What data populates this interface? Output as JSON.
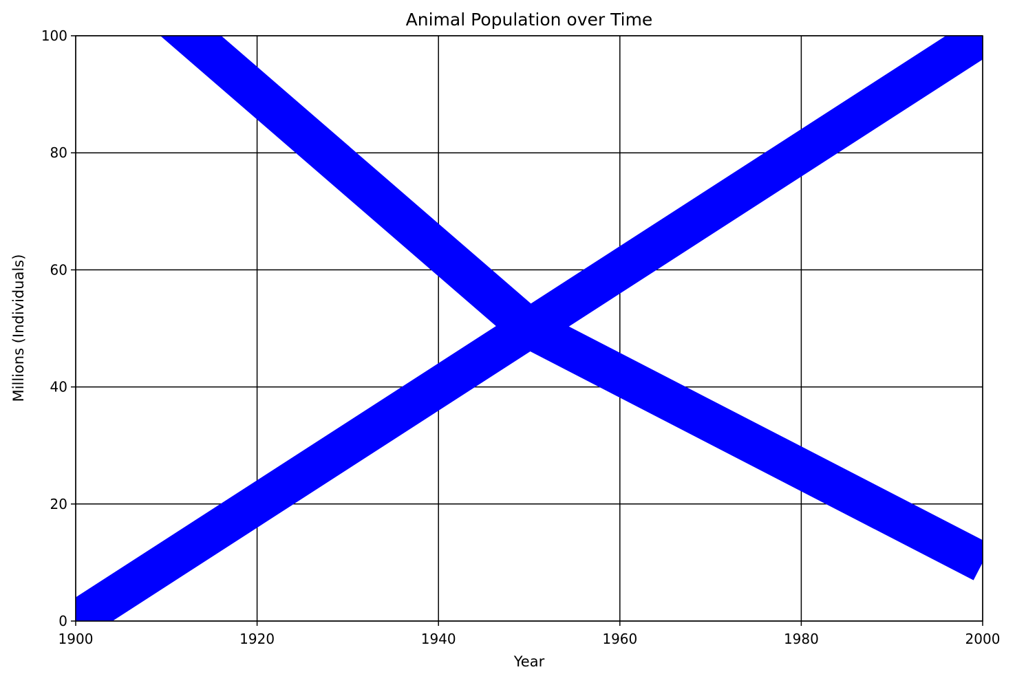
{
  "chart_data": {
    "type": "line",
    "title": "Animal Population over Time",
    "xlabel": "Year",
    "ylabel": "Millions (Individuals)",
    "xlim": [
      1900,
      2000
    ],
    "ylim": [
      0,
      100
    ],
    "xticks": [
      1900,
      1920,
      1940,
      1960,
      1980,
      2000
    ],
    "yticks": [
      0,
      20,
      40,
      60,
      80,
      100
    ],
    "grid": true,
    "legend": "none",
    "series": [
      {
        "color": "#0000ff",
        "x": [
          1900,
          1950,
          2000
        ],
        "y": [
          0,
          50,
          100
        ]
      },
      {
        "color": "#0000ff",
        "x": [
          1900,
          1950,
          2000
        ],
        "y": [
          117,
          50,
          10
        ]
      }
    ]
  }
}
